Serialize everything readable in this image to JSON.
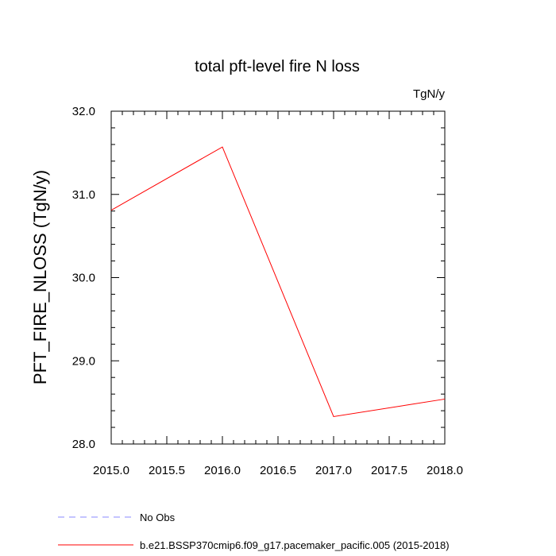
{
  "chart_data": {
    "type": "line",
    "title": "total pft-level fire N loss",
    "units_label": "TgN/y",
    "xlabel": "",
    "ylabel": "PFT_FIRE_NLOSS  (TgN/y)",
    "xlim": [
      2015.0,
      2018.0
    ],
    "ylim": [
      28.0,
      32.0
    ],
    "x_ticks": [
      2015.0,
      2015.5,
      2016.0,
      2016.5,
      2017.0,
      2017.5,
      2018.0
    ],
    "x_tick_labels": [
      "2015.0",
      "2015.5",
      "2016.0",
      "2016.5",
      "2017.0",
      "2017.5",
      "2018.0"
    ],
    "y_ticks": [
      28.0,
      29.0,
      30.0,
      31.0,
      32.0
    ],
    "y_tick_labels": [
      "28.0",
      "29.0",
      "30.0",
      "31.0",
      "32.0"
    ],
    "grid": false,
    "legend_position": "bottom",
    "series": [
      {
        "name": "b.e21.BSSP370cmip6.f09_g17.pacemaker_pacific.005 (2015-2018)",
        "color": "#ff0000",
        "dash": "solid",
        "x": [
          2015.0,
          2016.0,
          2017.0,
          2018.0
        ],
        "y": [
          30.81,
          31.57,
          28.33,
          28.54
        ]
      }
    ],
    "legend": [
      {
        "label": "No Obs",
        "color": "#8888ff",
        "dash": "dashed"
      },
      {
        "label": "b.e21.BSSP370cmip6.f09_g17.pacemaker_pacific.005 (2015-2018)",
        "color": "#ff0000",
        "dash": "solid"
      }
    ]
  }
}
